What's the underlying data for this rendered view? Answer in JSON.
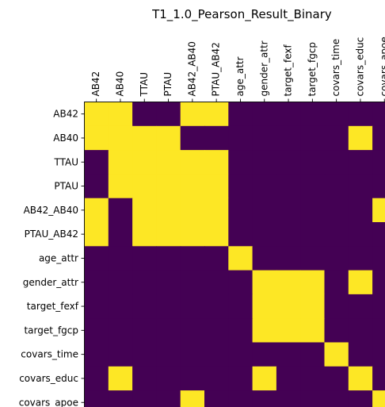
{
  "chart_data": {
    "type": "heatmap",
    "title": "T1_1.0_Pearson_Result_Binary",
    "xlabel": "",
    "ylabel": "",
    "x_tick_position": "top",
    "bottom_ticks_labeled": false,
    "grid": false,
    "legend": "none",
    "colormap": "viridis-binary",
    "colors": {
      "zero": "#440154",
      "one": "#fde725"
    },
    "x_labels": [
      "AB42",
      "AB40",
      "TTAU",
      "PTAU",
      "AB42_AB40",
      "PTAU_AB42",
      "age_attr",
      "gender_attr",
      "target_fexf",
      "target_fgcp",
      "covars_time",
      "covars_educ",
      "covars_apoe"
    ],
    "y_labels": [
      "AB42",
      "AB40",
      "TTAU",
      "PTAU",
      "AB42_AB40",
      "PTAU_AB42",
      "age_attr",
      "gender_attr",
      "target_fexf",
      "target_fgcp",
      "covars_time",
      "covars_educ",
      "covars_apoe"
    ],
    "values": [
      [
        1,
        1,
        0,
        0,
        1,
        1,
        0,
        0,
        0,
        0,
        0,
        0,
        0
      ],
      [
        1,
        1,
        1,
        1,
        0,
        0,
        0,
        0,
        0,
        0,
        0,
        1,
        0
      ],
      [
        0,
        1,
        1,
        1,
        1,
        1,
        0,
        0,
        0,
        0,
        0,
        0,
        0
      ],
      [
        0,
        1,
        1,
        1,
        1,
        1,
        0,
        0,
        0,
        0,
        0,
        0,
        0
      ],
      [
        1,
        0,
        1,
        1,
        1,
        1,
        0,
        0,
        0,
        0,
        0,
        0,
        1
      ],
      [
        1,
        0,
        1,
        1,
        1,
        1,
        0,
        0,
        0,
        0,
        0,
        0,
        0
      ],
      [
        0,
        0,
        0,
        0,
        0,
        0,
        1,
        0,
        0,
        0,
        0,
        0,
        0
      ],
      [
        0,
        0,
        0,
        0,
        0,
        0,
        0,
        1,
        1,
        1,
        0,
        1,
        0
      ],
      [
        0,
        0,
        0,
        0,
        0,
        0,
        0,
        1,
        1,
        1,
        0,
        0,
        0
      ],
      [
        0,
        0,
        0,
        0,
        0,
        0,
        0,
        1,
        1,
        1,
        0,
        0,
        0
      ],
      [
        0,
        0,
        0,
        0,
        0,
        0,
        0,
        0,
        0,
        0,
        1,
        0,
        0
      ],
      [
        0,
        1,
        0,
        0,
        0,
        0,
        0,
        1,
        0,
        0,
        0,
        1,
        0
      ],
      [
        0,
        0,
        0,
        0,
        1,
        0,
        0,
        0,
        0,
        0,
        0,
        0,
        1
      ]
    ]
  }
}
